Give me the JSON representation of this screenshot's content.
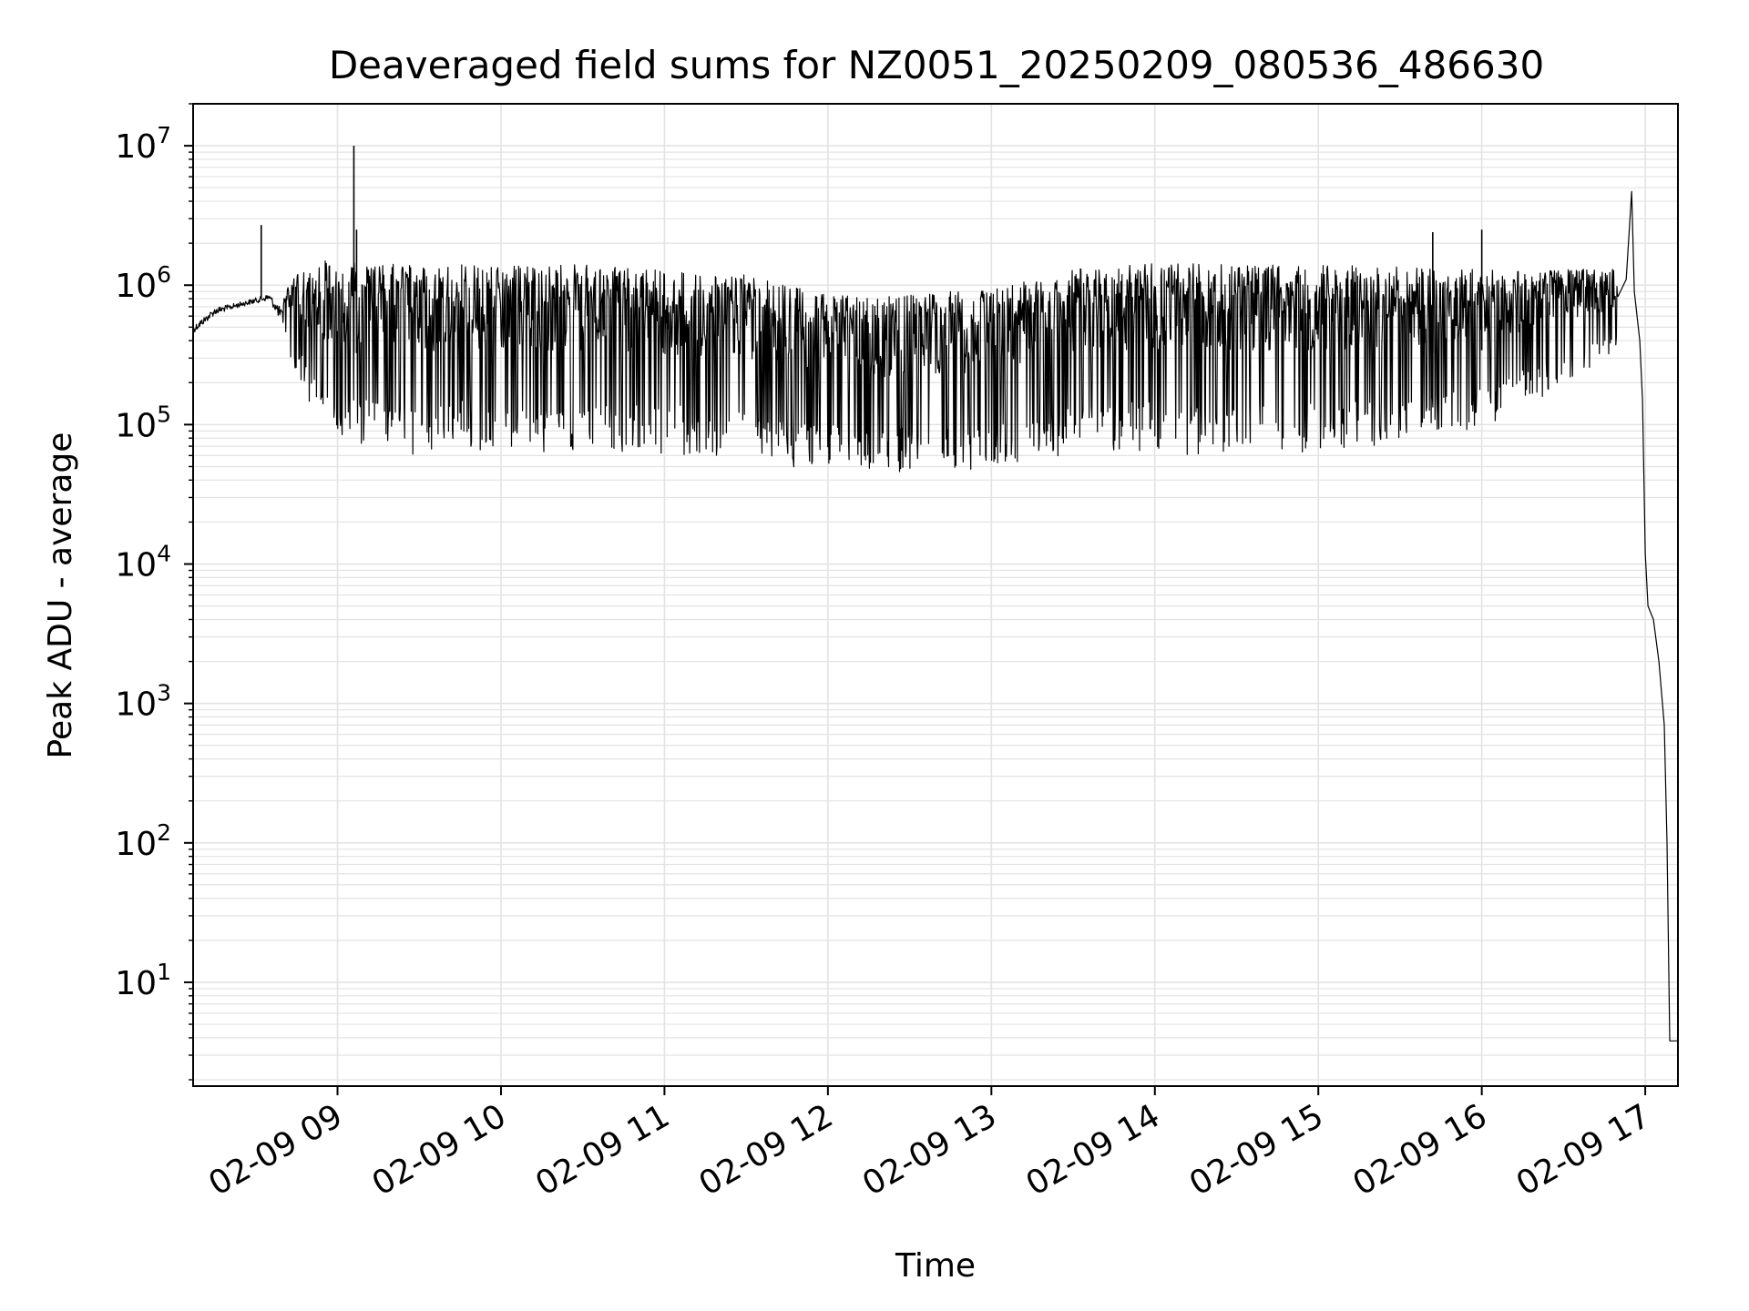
{
  "chart_data": {
    "type": "line",
    "title": "Deaveraged field sums for NZ0051_20250209_080536_486630",
    "xlabel": "Time",
    "ylabel": "Peak ADU - average",
    "yscale": "log",
    "ylim": [
      1.8,
      20000000
    ],
    "xlim": [
      "02-09 08:07",
      "02-09 17:12"
    ],
    "grid": true,
    "series_color": "#000000",
    "grid_color": "#e3e3e3",
    "x_ticks": [
      "02-09 09",
      "02-09 10",
      "02-09 11",
      "02-09 12",
      "02-09 13",
      "02-09 14",
      "02-09 15",
      "02-09 16",
      "02-09 17"
    ],
    "y_ticks": [
      {
        "base": "10",
        "exp": "1",
        "value": 10
      },
      {
        "base": "10",
        "exp": "2",
        "value": 100
      },
      {
        "base": "10",
        "exp": "3",
        "value": 1000
      },
      {
        "base": "10",
        "exp": "4",
        "value": 10000
      },
      {
        "base": "10",
        "exp": "5",
        "value": 100000
      },
      {
        "base": "10",
        "exp": "6",
        "value": 1000000
      },
      {
        "base": "10",
        "exp": "7",
        "value": 10000000
      }
    ],
    "series": [
      {
        "values_note_free": true,
        "envelope": [
          {
            "x": "02-09 08:07",
            "low": 400000,
            "high": 600000
          },
          {
            "x": "02-09 08:15",
            "low": 550000,
            "high": 800000
          },
          {
            "x": "02-09 08:25",
            "low": 650000,
            "high": 850000
          },
          {
            "x": "02-09 08:35",
            "low": 700000,
            "high": 1000000
          },
          {
            "x": "02-09 08:40",
            "low": 400000,
            "high": 900000
          },
          {
            "x": "02-09 08:45",
            "low": 230000,
            "high": 1200000
          },
          {
            "x": "02-09 08:55",
            "low": 80000,
            "high": 1500000
          },
          {
            "x": "02-09 09:30",
            "low": 60000,
            "high": 1400000
          },
          {
            "x": "02-09 10:30",
            "low": 60000,
            "high": 1400000
          },
          {
            "x": "02-09 11:30",
            "low": 55000,
            "high": 1200000
          },
          {
            "x": "02-09 12:00",
            "low": 45000,
            "high": 850000
          },
          {
            "x": "02-09 12:30",
            "low": 40000,
            "high": 850000
          },
          {
            "x": "02-09 13:00",
            "low": 45000,
            "high": 950000
          },
          {
            "x": "02-09 13:30",
            "low": 60000,
            "high": 1300000
          },
          {
            "x": "02-09 14:00",
            "low": 60000,
            "high": 1450000
          },
          {
            "x": "02-09 15:00",
            "low": 60000,
            "high": 1400000
          },
          {
            "x": "02-09 16:00",
            "low": 90000,
            "high": 1300000
          },
          {
            "x": "02-09 16:50",
            "low": 300000,
            "high": 1300000
          }
        ],
        "points": [
          {
            "x": "02-09 08:07",
            "y": 450000
          },
          {
            "x": "02-09 08:20",
            "y": 700000
          },
          {
            "x": "02-09 08:32",
            "y": 2700000
          },
          {
            "x": "02-09 09:06",
            "y": 10000000
          },
          {
            "x": "02-09 09:07",
            "y": 2500000
          },
          {
            "x": "02-09 15:42",
            "y": 2400000
          },
          {
            "x": "02-09 16:00",
            "y": 2500000
          },
          {
            "x": "02-09 16:53",
            "y": 1100000
          },
          {
            "x": "02-09 16:55",
            "y": 4700000
          },
          {
            "x": "02-09 16:56",
            "y": 900000
          },
          {
            "x": "02-09 16:58",
            "y": 400000
          },
          {
            "x": "02-09 16:59",
            "y": 150000
          },
          {
            "x": "02-09 17:00",
            "y": 12000
          },
          {
            "x": "02-09 17:01",
            "y": 5000
          },
          {
            "x": "02-09 17:03",
            "y": 4000
          },
          {
            "x": "02-09 17:05",
            "y": 2000
          },
          {
            "x": "02-09 17:07",
            "y": 700
          },
          {
            "x": "02-09 17:08",
            "y": 100
          },
          {
            "x": "02-09 17:09",
            "y": 3.8
          },
          {
            "x": "02-09 17:12",
            "y": 3.8
          }
        ]
      }
    ]
  }
}
